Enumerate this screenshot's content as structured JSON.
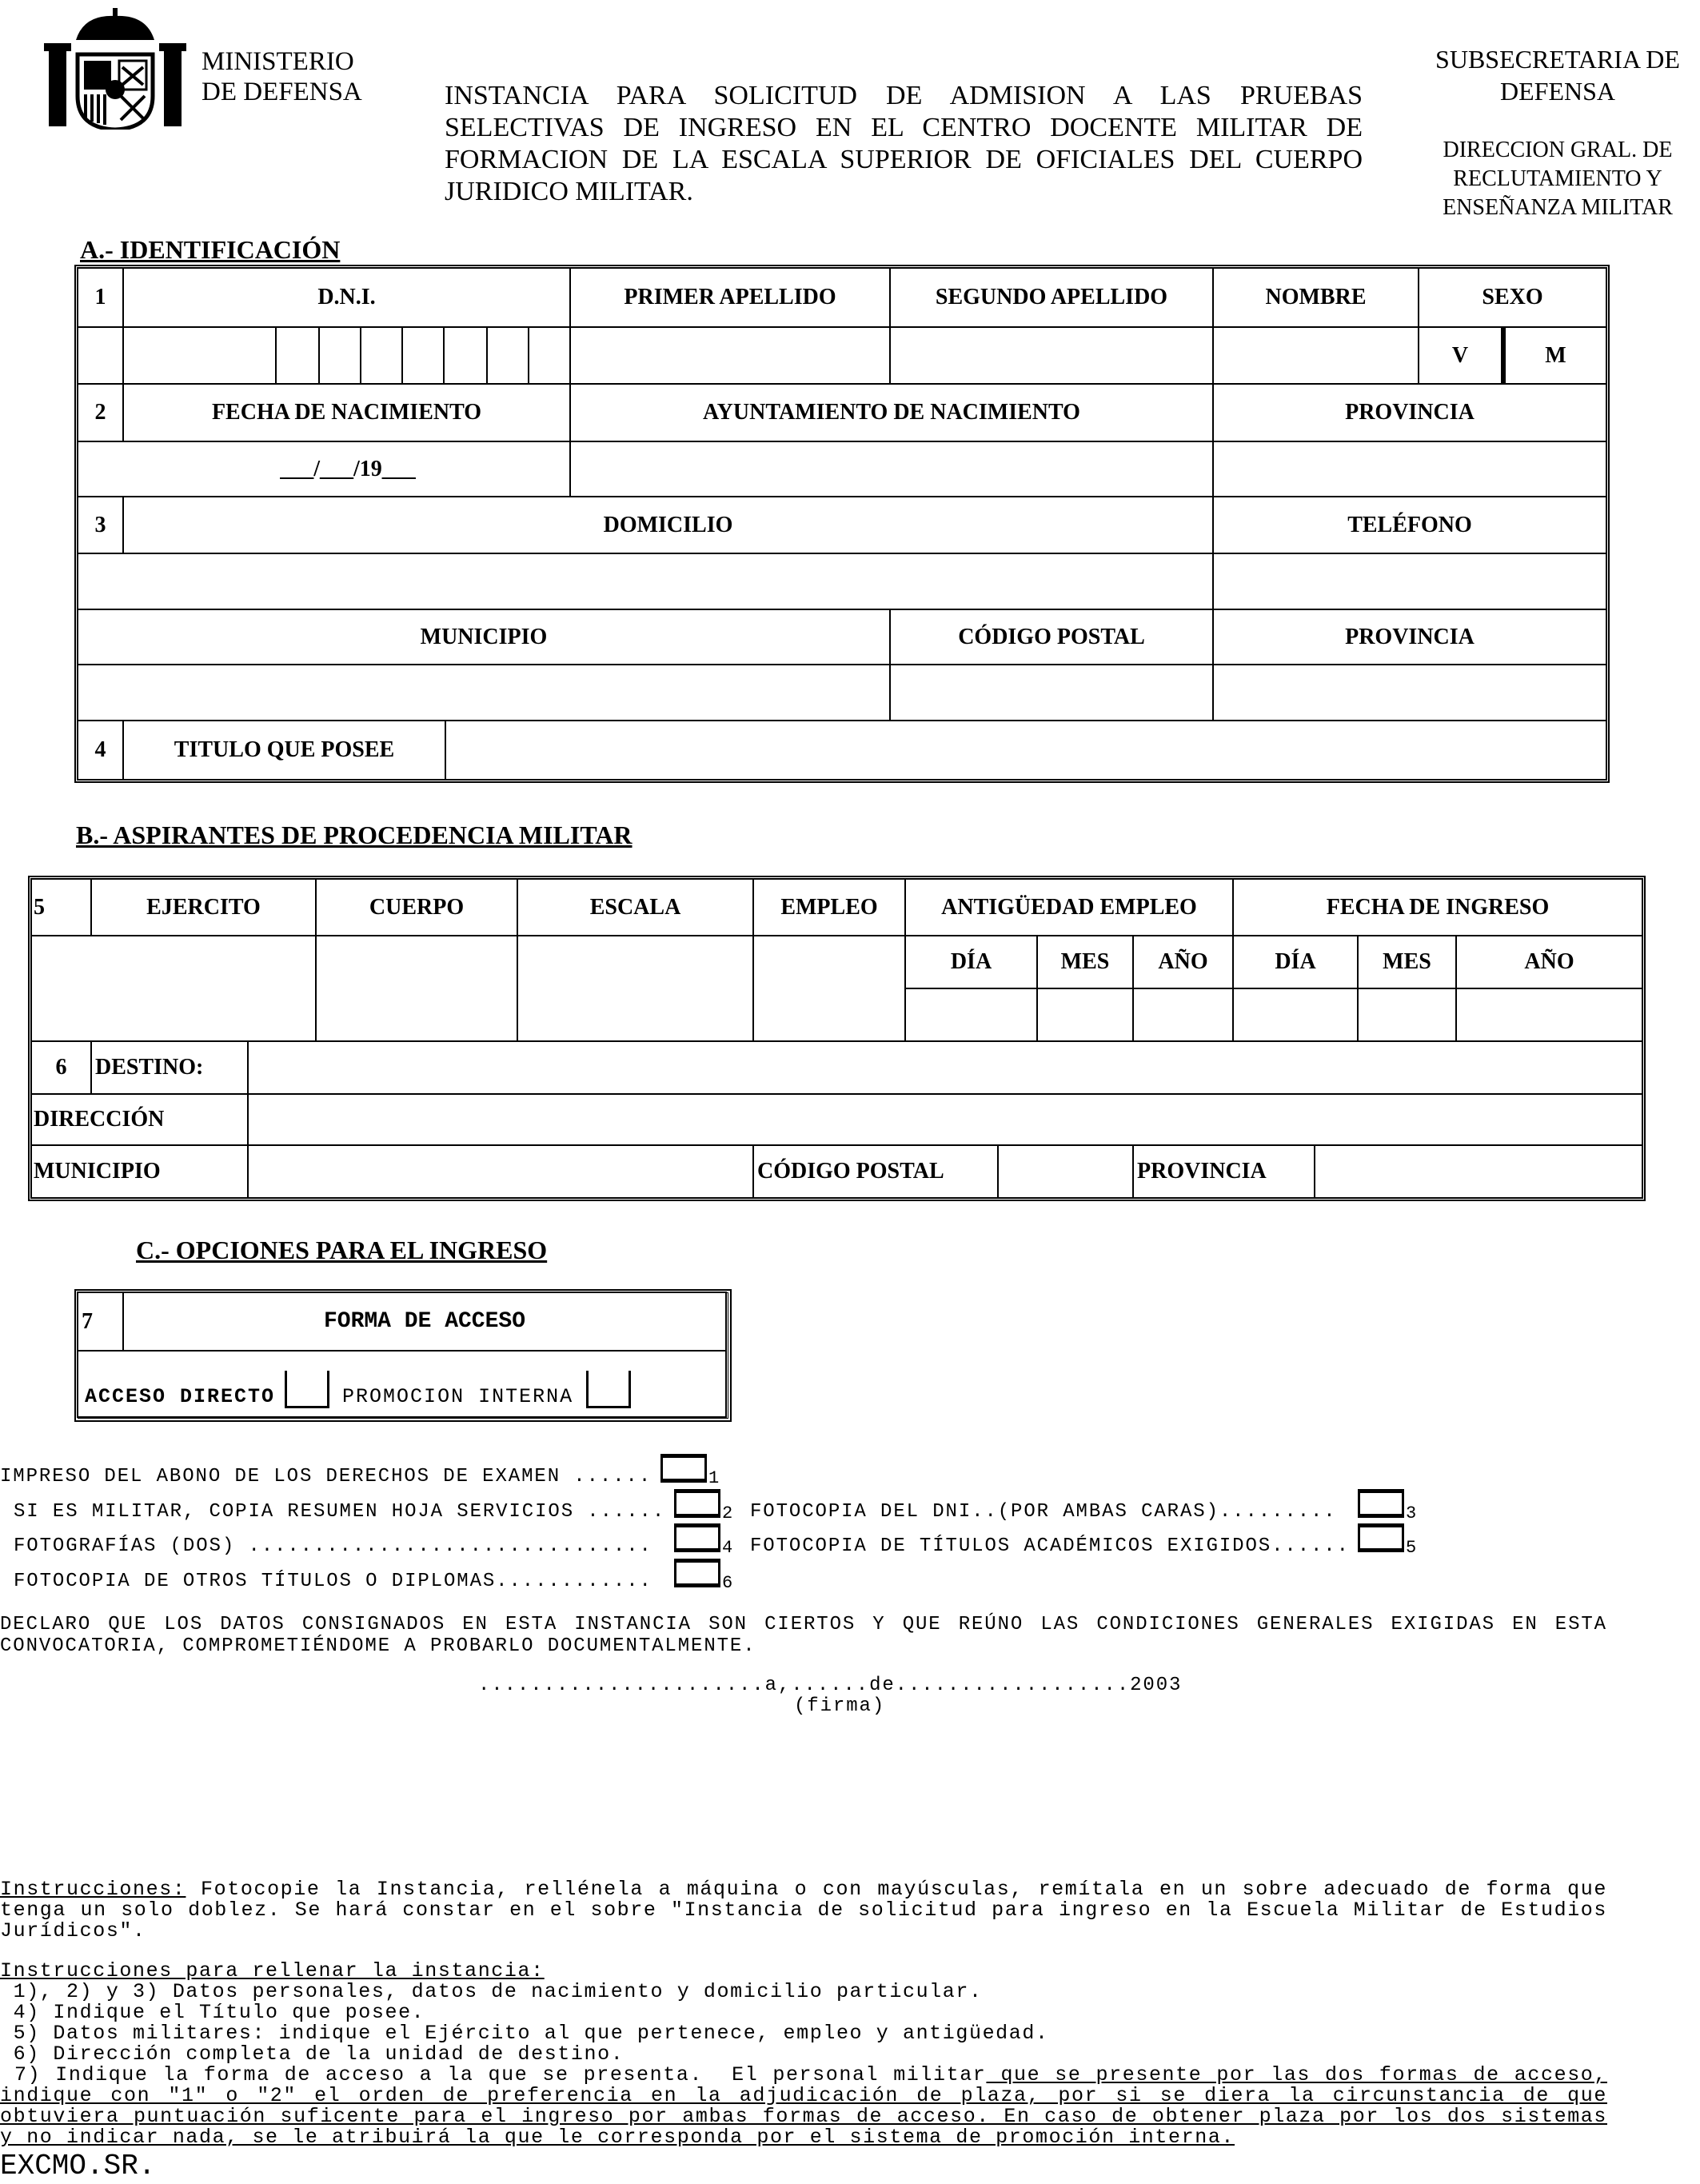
{
  "header": {
    "ministry_line1": "MINISTERIO",
    "ministry_line2": "DE DEFENSA",
    "title": "INSTANCIA PARA SOLICITUD DE ADMISION A LAS PRUEBAS SELECTIVAS DE INGRESO EN EL CENTRO DOCENTE MILITAR DE FORMACION DE LA ESCALA SUPERIOR DE OFICIALES DEL CUERPO JURIDICO MILITAR.",
    "subsecretaria_line1": "SUBSECRETARIA DE",
    "subsecretaria_line2": "DEFENSA",
    "direccion_line1": "DIRECCION GRAL. DE",
    "direccion_line2": "RECLUTAMIENTO Y",
    "direccion_line3": "ENSEÑANZA MILITAR",
    "emblem_icon": "spanish-coat-of-arms-icon"
  },
  "section_a": {
    "heading": "A.- IDENTIFICACIÓN",
    "n1": "1",
    "dni": "D.N.I.",
    "primer_apellido": "PRIMER APELLIDO",
    "segundo_apellido": "SEGUNDO APELLIDO",
    "nombre": "NOMBRE",
    "sexo": "SEXO",
    "sexo_v": "V",
    "sexo_m": "M",
    "n2": "2",
    "fecha_nacimiento": "FECHA DE NACIMIENTO",
    "ayuntamiento": "AYUNTAMIENTO DE NACIMIENTO",
    "provincia": "PROVINCIA",
    "fecha_placeholder": "___/___/19___",
    "n3": "3",
    "domicilio": "DOMICILIO",
    "telefono": "TELÉFONO",
    "municipio": "MUNICIPIO",
    "codigo_postal": "CÓDIGO POSTAL",
    "provincia2": "PROVINCIA",
    "n4": "4",
    "titulo": "TITULO QUE POSEE"
  },
  "section_b": {
    "heading": "B.- ASPIRANTES DE PROCEDENCIA MILITAR",
    "n5": "5",
    "ejercito": "EJERCITO",
    "cuerpo": "CUERPO",
    "escala": "ESCALA",
    "empleo": "EMPLEO",
    "antiguedad": "ANTIGÜEDAD EMPLEO",
    "fecha_ingreso": "FECHA DE INGRESO",
    "dia": "DÍA",
    "mes": "MES",
    "ano": "AÑO",
    "n6": "6",
    "destino": "DESTINO:",
    "direccion": "DIRECCIÓN",
    "municipio": "MUNICIPIO",
    "codigo_postal": "CÓDIGO POSTAL",
    "provincia": "PROVINCIA"
  },
  "section_c": {
    "heading": "C.- OPCIONES PARA EL INGRESO",
    "n7": "7",
    "forma_acceso": "FORMA DE ACCESO",
    "acceso_directo": "ACCESO DIRECTO",
    "promocion_interna": "PROMOCION INTERNA"
  },
  "checklist": [
    {
      "label": "IMPRESO DEL ABONO DE LOS DERECHOS DE EXAMEN ......",
      "num": "1"
    },
    {
      "label": "SI ES MILITAR, COPIA RESUMEN HOJA SERVICIOS ......",
      "num": "2"
    },
    {
      "label": "FOTOCOPIA DEL DNI..(POR AMBAS CARAS).........",
      "num": "3"
    },
    {
      "label": "FOTOGRAFÍAS (DOS) ...............................",
      "num": "4"
    },
    {
      "label": "FOTOCOPIA DE TÍTULOS ACADÉMICOS EXIGIDOS......",
      "num": "5"
    },
    {
      "label": "FOTOCOPIA DE OTROS TÍTULOS O DIPLOMAS............",
      "num": "6"
    }
  ],
  "declaration": "DECLARO QUE LOS DATOS CONSIGNADOS EN ESTA INSTANCIA SON CIERTOS Y QUE REÚNO LAS CONDICIONES GENERALES EXIGIDAS EN ESTA CONVOCATORIA, COMPROMETIÉNDOME A PROBARLO DOCUMENTALMENTE.",
  "signature": {
    "date_line": "......................a,......de..................2003",
    "firma": "(firma)"
  },
  "instructions": {
    "label": "Instrucciones:",
    "text": " Fotocopie la Instancia, rellénela a máquina o con mayúsculas, remítala en un sobre adecuado de forma que tenga un solo doblez. Se hará constar en el sobre \"Instancia de solicitud para ingreso en la Escuela Militar de Estudios Jurídicos\".",
    "fill_heading": "Instrucciones para rellenar la instancia:",
    "items": [
      " 1), 2) y 3) Datos personales, datos de nacimiento y domicilio particular.",
      " 4) Indique el Título que posee.",
      " 5) Datos militares: indique el Ejército al que pertenece, empleo y antigüedad.",
      " 6) Dirección completa de la unidad de destino."
    ],
    "item7_plain": " 7) Indique la forma de acceso a la que se presenta.  El personal militar",
    "item7_underlined": " que se presente por las dos formas de acceso, indique con \"1\" o \"2\" el orden de preferencia en la adjudicación de plaza, por si se diera la circunstancia de que obtuviera puntuación suficente para el ingreso por ambas formas de acceso. En caso de obtener plaza por los dos sistemas y no indicar nada, se le atribuirá la que le corresponda por el sistema de promoción interna."
  },
  "addressee": "EXCMO.SR."
}
